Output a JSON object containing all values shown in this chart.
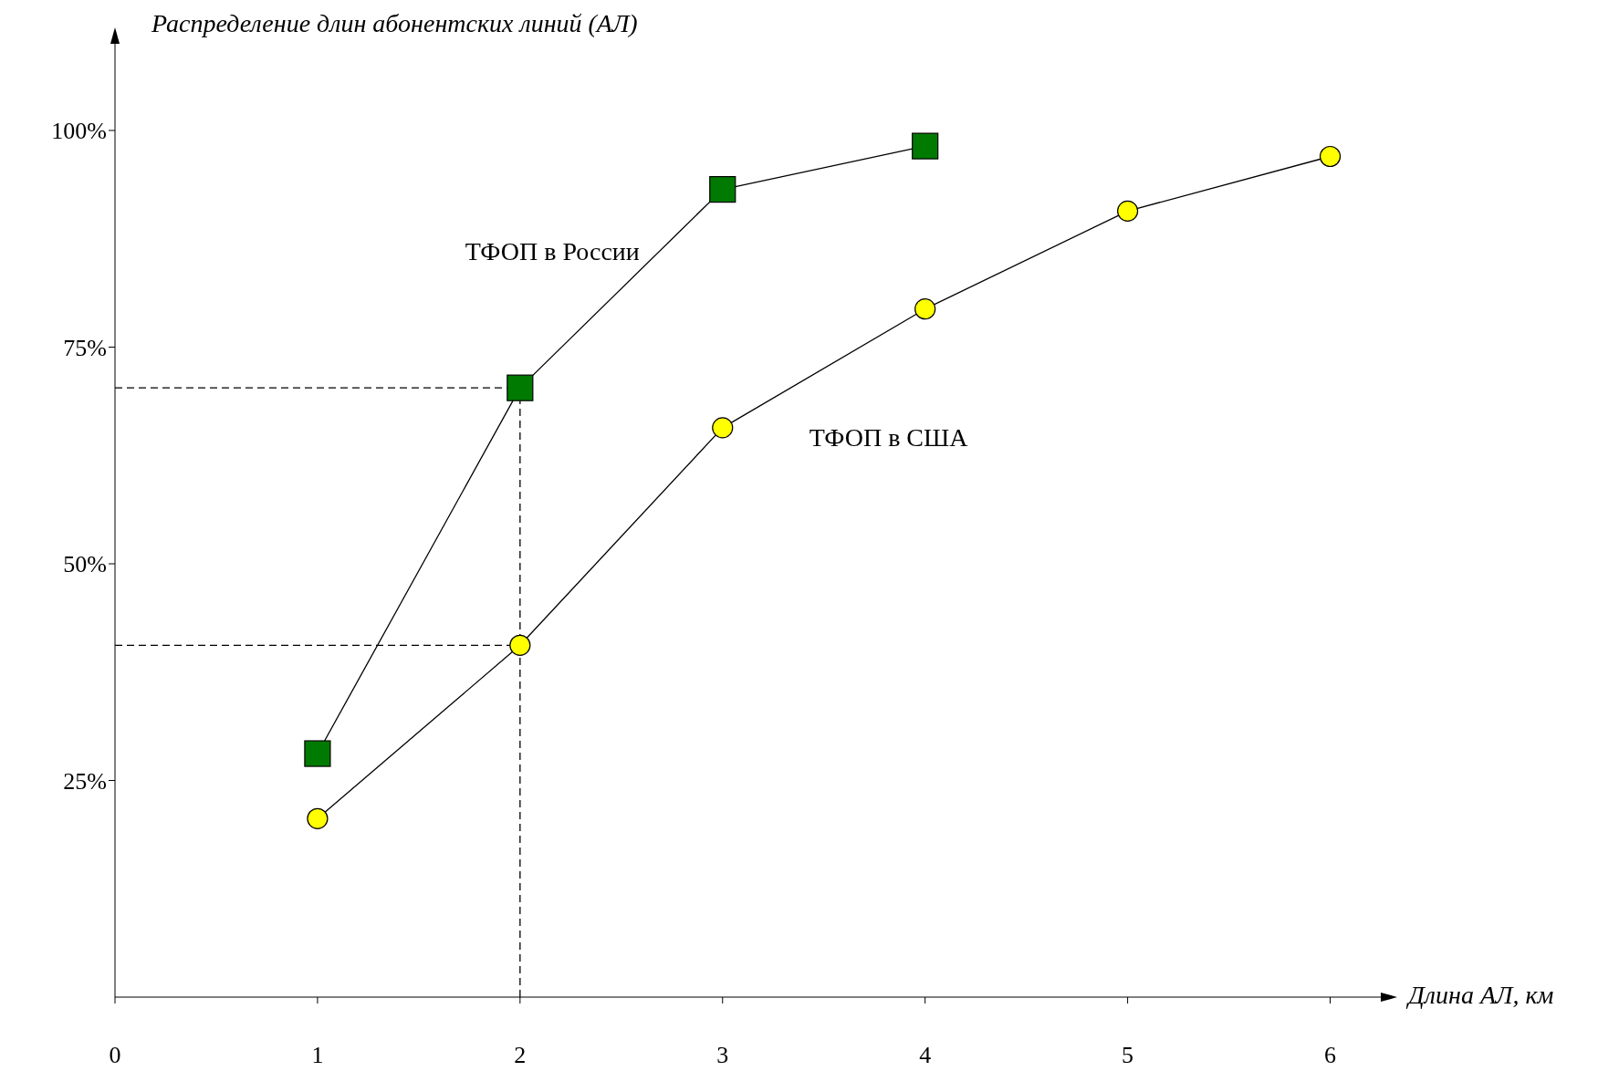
{
  "chart_data": {
    "type": "line",
    "ylabel": "Распределение длин абонентских линий (АЛ)",
    "xlabel": "Длина АЛ, км",
    "xlim": [
      0,
      6.25
    ],
    "xticks": [
      0,
      1,
      2,
      3,
      4,
      5,
      6
    ],
    "ylim": [
      0,
      110
    ],
    "yticks": [
      {
        "value": 25,
        "label": "25%"
      },
      {
        "value": 50,
        "label": "50%"
      },
      {
        "value": 75,
        "label": "75%"
      },
      {
        "value": 100,
        "label": "100%"
      }
    ],
    "grid": false,
    "legend": false,
    "series": [
      {
        "name": "ТФОП в России",
        "color": "#007a00",
        "marker": "square",
        "x": [
          1,
          2,
          3,
          4
        ],
        "values": [
          28.1,
          70.3,
          93.2,
          98.2
        ]
      },
      {
        "name": "ТФОП в США",
        "color": "#ffff00",
        "marker": "circle",
        "x": [
          1,
          2,
          3,
          4,
          5,
          6
        ],
        "values": [
          20.6,
          40.6,
          65.7,
          79.4,
          90.7,
          97.0
        ]
      }
    ],
    "ref_lines": [
      {
        "axis": "y",
        "value": 70.3,
        "line_style": "dashed"
      },
      {
        "axis": "y",
        "value": 40.6,
        "line_style": "dashed"
      },
      {
        "axis": "x",
        "value": 2,
        "line_style": "dashed"
      }
    ]
  }
}
